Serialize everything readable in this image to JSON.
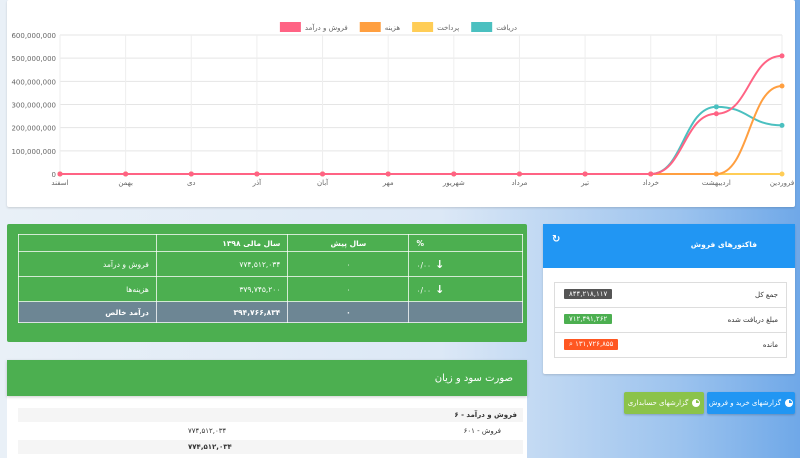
{
  "chart_data": {
    "type": "line",
    "categories": [
      "فروردین",
      "اردیبهشت",
      "خرداد",
      "تیر",
      "مرداد",
      "شهریور",
      "مهر",
      "آبان",
      "آذر",
      "دی",
      "بهمن",
      "اسفند"
    ],
    "ylim": [
      0,
      600000000
    ],
    "yticks": [
      "0",
      "100,000,000",
      "200,000,000",
      "300,000,000",
      "400,000,000",
      "500,000,000",
      "600,000,000"
    ],
    "grid": true,
    "legend_position": "top",
    "series": [
      {
        "name": "دریافت",
        "color": "#4bc0c0",
        "values": [
          210000000,
          290000000,
          0,
          0,
          0,
          0,
          0,
          0,
          0,
          0,
          0,
          0
        ]
      },
      {
        "name": "پرداخت",
        "color": "#ffcd56",
        "values": [
          0,
          0,
          0,
          0,
          0,
          0,
          0,
          0,
          0,
          0,
          0,
          0
        ]
      },
      {
        "name": "هزینه",
        "color": "#ff9f40",
        "values": [
          380000000,
          0,
          0,
          0,
          0,
          0,
          0,
          0,
          0,
          0,
          0,
          0
        ]
      },
      {
        "name": "فروش و درآمد",
        "color": "#ff6384",
        "values": [
          510000000,
          260000000,
          0,
          0,
          0,
          0,
          0,
          0,
          0,
          0,
          0,
          0
        ]
      }
    ]
  },
  "summary": {
    "headers": {
      "label": "",
      "year": "سال مالی ۱۳۹۸",
      "prev": "سال پیش",
      "pct": "%"
    },
    "rows": [
      {
        "label": "فروش و درآمد",
        "year": "۷۷۴,۵۱۲,۰۳۴",
        "prev": "۰",
        "pct": "۰/۰۰",
        "arrow": "down-arrow-icon"
      },
      {
        "label": "هزینه‌ها",
        "year": "۳۷۹,۷۴۵,۲۰۰",
        "prev": "۰",
        "pct": "۰/۰۰",
        "arrow": "down-arrow-icon"
      }
    ],
    "net": {
      "label": "درآمد خالص",
      "year": "۳۹۴,۷۶۶,۸۳۴",
      "prev": "۰",
      "pct": ""
    }
  },
  "invoices": {
    "title": "فاکتورهای فروش",
    "refresh_icon": "refresh-icon",
    "rows": [
      {
        "label": "جمع کل",
        "value": "۸۴۴,۲۱۸,۱۱۷",
        "color": "#555555"
      },
      {
        "label": "مبلغ دریافت شده",
        "value": "۷۱۲,۴۹۱,۲۶۲",
        "color": "#4caf50"
      },
      {
        "label": "مانده",
        "value": "۱۳۱,۷۲۶,۸۵۵",
        "color": "#ff5722",
        "icon": "search-icon"
      }
    ]
  },
  "buttons": {
    "sales_reports": "گزارشهای خرید و فروش",
    "accounting_reports": "گزارشهای حسابداری"
  },
  "profit_loss": {
    "title": "صورت سود و زیان",
    "section": "۶ - فروش و درآمد",
    "item_label": "۶۰۱ - فروش",
    "item_value": "۷۷۴,۵۱۲,۰۳۴",
    "total_value": "۷۷۴,۵۱۲,۰۳۴"
  }
}
